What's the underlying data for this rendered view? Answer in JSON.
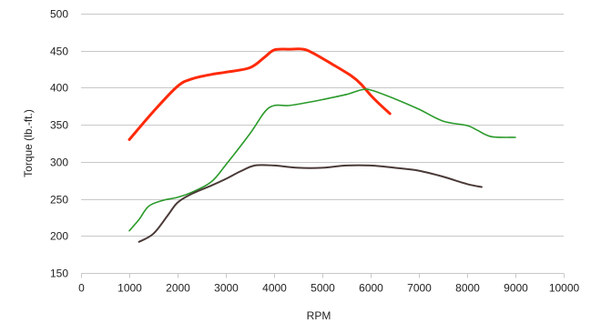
{
  "chart_data": {
    "type": "line",
    "xlabel": "RPM",
    "ylabel": "Torque (lb.-ft.)",
    "xlim": [
      0,
      10000
    ],
    "ylim": [
      150,
      500
    ],
    "xticks": [
      0,
      1000,
      2000,
      3000,
      4000,
      5000,
      6000,
      7000,
      8000,
      9000,
      10000
    ],
    "yticks": [
      150,
      200,
      250,
      300,
      350,
      400,
      450,
      500
    ],
    "xtick_labels": [
      "0",
      "1000",
      "2000",
      "3000",
      "4000",
      "5000",
      "6000",
      "7000",
      "8000",
      "9000",
      "10000"
    ],
    "ytick_labels": [
      "150",
      "200",
      "250",
      "300",
      "350",
      "400",
      "450",
      "500"
    ],
    "grid": "horizontal",
    "series": [
      {
        "color": "#ff2a0a",
        "x": [
          1000,
          1500,
          2000,
          2300,
          2700,
          3000,
          3500,
          3800,
          4000,
          4300,
          4600,
          4800,
          5200,
          5600,
          5800,
          6000,
          6200,
          6400
        ],
        "y": [
          330,
          368,
          402,
          412,
          418,
          421,
          427,
          441,
          451,
          452,
          452,
          447,
          432,
          416,
          405,
          390,
          377,
          365
        ]
      },
      {
        "color": "#2a9a2a",
        "x": [
          1000,
          1200,
          1400,
          1700,
          2000,
          2300,
          2700,
          3000,
          3500,
          3800,
          4000,
          4300,
          4600,
          5000,
          5500,
          5800,
          6000,
          6500,
          7000,
          7500,
          8000,
          8200,
          8500,
          9000
        ],
        "y": [
          207,
          222,
          240,
          248,
          252,
          259,
          273,
          296,
          338,
          367,
          376,
          376,
          379,
          384,
          391,
          397,
          397,
          385,
          371,
          355,
          349,
          343,
          334,
          333
        ]
      },
      {
        "color": "#4a3a37",
        "x": [
          1200,
          1500,
          1800,
          2000,
          2300,
          2700,
          3000,
          3300,
          3600,
          4000,
          4500,
          5000,
          5500,
          6000,
          6500,
          7000,
          7500,
          8000,
          8300
        ],
        "y": [
          192,
          203,
          228,
          245,
          257,
          268,
          277,
          287,
          295,
          295,
          292,
          292,
          295,
          295,
          292,
          288,
          280,
          270,
          266
        ]
      }
    ]
  }
}
